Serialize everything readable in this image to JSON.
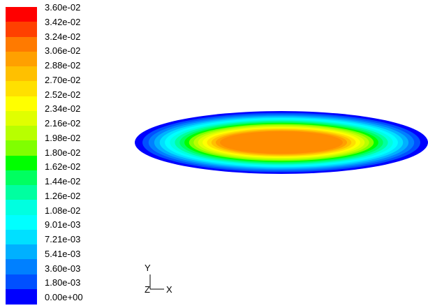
{
  "colorbar": {
    "labels": [
      "3.60e-02",
      "3.42e-02",
      "3.24e-02",
      "3.06e-02",
      "2.88e-02",
      "2.70e-02",
      "2.52e-02",
      "2.34e-02",
      "2.16e-02",
      "1.98e-02",
      "1.80e-02",
      "1.62e-02",
      "1.44e-02",
      "1.26e-02",
      "1.08e-02",
      "9.01e-03",
      "7.21e-03",
      "5.41e-03",
      "3.60e-03",
      "1.80e-03",
      "0.00e+00"
    ],
    "colors": [
      "#ff0000",
      "#ff4000",
      "#ff7a00",
      "#ffa000",
      "#ffc000",
      "#ffe000",
      "#ffff00",
      "#e0ff00",
      "#b8ff00",
      "#80ff00",
      "#00ff00",
      "#00ff60",
      "#00ffa0",
      "#00ffe0",
      "#00ffff",
      "#00e0ff",
      "#00b0ff",
      "#0080ff",
      "#0050ff",
      "#0000ff"
    ]
  },
  "contour": {
    "band_colors": [
      "#0000ff",
      "#0050ff",
      "#0080ff",
      "#00b0ff",
      "#00e0ff",
      "#00ffff",
      "#00ffe0",
      "#00ffa0",
      "#00ff60",
      "#00ff00",
      "#80ff00",
      "#b8ff00",
      "#e0ff00",
      "#ffff00",
      "#ffe000",
      "#ffc000",
      "#ffa000",
      "#ff8c00"
    ]
  },
  "axes": {
    "y_label": "Y",
    "z_label": "Z",
    "x_label": "X"
  }
}
